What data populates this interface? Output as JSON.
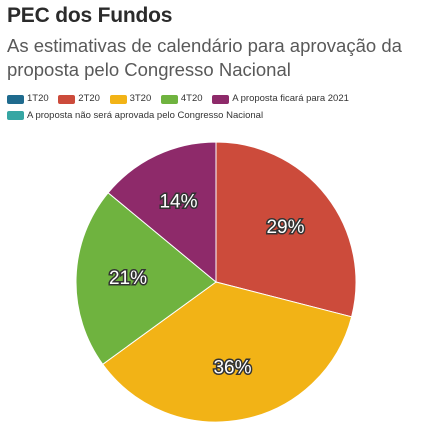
{
  "header": {
    "title": "PEC dos Fundos",
    "subtitle": "As estimativas de calendário para aprovação da proposta pelo Congresso Nacional"
  },
  "legend": [
    {
      "label": "1T20",
      "color": "#1f6b8e"
    },
    {
      "label": "2T20",
      "color": "#cc4b3b"
    },
    {
      "label": "3T20",
      "color": "#f2b316"
    },
    {
      "label": "4T20",
      "color": "#6fb33f"
    },
    {
      "label": "A proposta ficará para 2021",
      "color": "#8e2a6a"
    },
    {
      "label": "A proposta não será aprovada pelo Congresso Nacional",
      "color": "#36a6a3"
    }
  ],
  "chart_data": {
    "type": "pie",
    "title": "PEC dos Fundos",
    "subtitle": "As estimativas de calendário para aprovação da proposta pelo Congresso Nacional",
    "slices": [
      {
        "name": "1T20",
        "value": 0,
        "label": "",
        "color": "#1f6b8e"
      },
      {
        "name": "2T20",
        "value": 29,
        "label": "29%",
        "color": "#cc4b3b"
      },
      {
        "name": "3T20",
        "value": 36,
        "label": "36%",
        "color": "#f2b316"
      },
      {
        "name": "4T20",
        "value": 21,
        "label": "21%",
        "color": "#6fb33f"
      },
      {
        "name": "A proposta ficará para 2021",
        "value": 14,
        "label": "14%",
        "color": "#8e2a6a"
      },
      {
        "name": "A proposta não será aprovada pelo Congresso Nacional",
        "value": 0,
        "label": "",
        "color": "#36a6a3"
      }
    ],
    "start_angle_deg": 0,
    "direction": "clockwise",
    "legend_position": "top-left"
  }
}
